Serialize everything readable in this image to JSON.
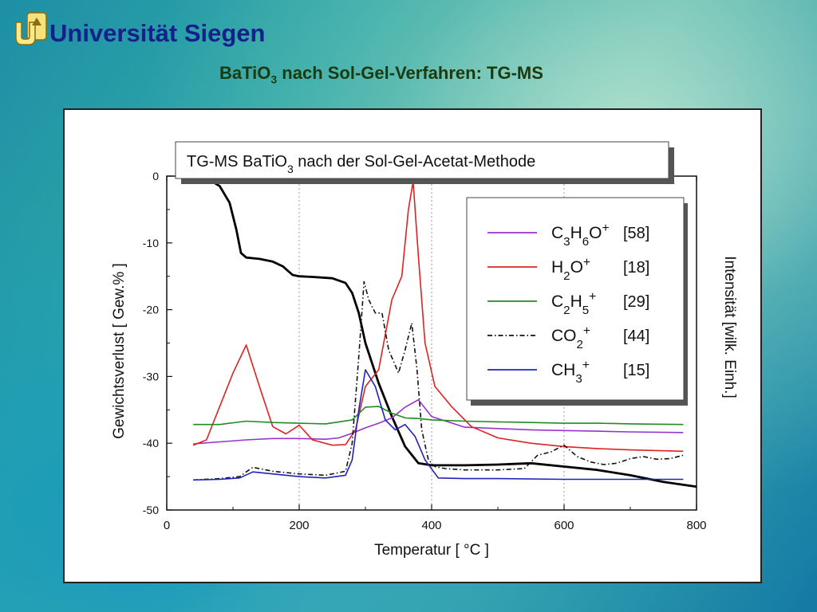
{
  "header": {
    "logo_icon": "universitaet-siegen-logo-icon",
    "university": "Universität Siegen",
    "subtitle_main": "BaTiO",
    "subtitle_sub": "3",
    "subtitle_rest": " nach Sol-Gel-Verfahren: TG-MS"
  },
  "chart_data": {
    "type": "line",
    "title": "TG-MS   BaTiO3 nach der Sol-Gel-Acetat-Methode",
    "title_parts": {
      "a": "TG-MS   BaTiO",
      "sub": "3",
      "b": " nach der Sol-Gel-Acetat-Methode"
    },
    "xlabel": "Temperatur  [ °C ]",
    "ylabel": "Gewichtsverlust  [ Gew.% ]",
    "y2label": "Intensität  [wilk. Einh.]",
    "xlim": [
      0,
      800
    ],
    "ylim": [
      -50,
      0
    ],
    "xticks": [
      "0",
      "200",
      "400",
      "600",
      "800"
    ],
    "yticks": [
      "0",
      "-10",
      "-20",
      "-30",
      "-40",
      "-50"
    ],
    "grid": "vertical dotted lines at 200, 400, 600",
    "legend_position": "top-right",
    "series": [
      {
        "name": "TG",
        "color": "#000000",
        "style": "solid-thick",
        "x": [
          35,
          60,
          80,
          95,
          105,
          112,
          120,
          140,
          160,
          175,
          190,
          200,
          220,
          250,
          270,
          280,
          290,
          300,
          320,
          340,
          360,
          380,
          400,
          450,
          500,
          550,
          600,
          650,
          700,
          750,
          800
        ],
        "y": [
          0,
          -0.3,
          -1.5,
          -4,
          -8,
          -11.5,
          -12.2,
          -12.4,
          -12.8,
          -13.5,
          -14.8,
          -15,
          -15.1,
          -15.3,
          -16,
          -17.5,
          -20.5,
          -25,
          -31,
          -36,
          -40.5,
          -43,
          -43.3,
          -43.3,
          -43.2,
          -43,
          -43.5,
          -44,
          -44.8,
          -45.8,
          -46.5
        ]
      },
      {
        "name": "C3H6O+",
        "mz": "[58]",
        "label_parts": [
          "C",
          "3",
          "H",
          "6",
          "O",
          "+"
        ],
        "color": "#9933cc",
        "style": "solid",
        "x": [
          40,
          80,
          120,
          160,
          200,
          240,
          260,
          280,
          300,
          320,
          340,
          360,
          380,
          400,
          450,
          500,
          550,
          600,
          650,
          700,
          780
        ],
        "y": [
          -40.1,
          -39.8,
          -39.5,
          -39.3,
          -39.3,
          -39.4,
          -39.2,
          -38.5,
          -37.7,
          -37,
          -36.2,
          -34.6,
          -33.5,
          -36,
          -37.6,
          -37.8,
          -38,
          -38.1,
          -38.2,
          -38.3,
          -38.4
        ]
      },
      {
        "name": "H2O+",
        "mz": "[18]",
        "label_parts": [
          "H",
          "2",
          "O",
          "+"
        ],
        "color": "#dd2222",
        "style": "solid",
        "x": [
          40,
          60,
          80,
          100,
          120,
          140,
          160,
          180,
          200,
          220,
          250,
          270,
          285,
          300,
          320,
          340,
          355,
          365,
          372,
          380,
          390,
          405,
          430,
          460,
          500,
          550,
          600,
          650,
          700,
          780
        ],
        "y": [
          -40.3,
          -39.5,
          -34.5,
          -29.5,
          -25.3,
          -31.5,
          -37.5,
          -38.6,
          -37.3,
          -39.5,
          -40.3,
          -40.2,
          -38,
          -31.5,
          -29,
          -18.5,
          -15,
          -5,
          -0.8,
          -12,
          -25,
          -31.5,
          -34.5,
          -37.5,
          -39.2,
          -40,
          -40.5,
          -40.8,
          -41,
          -41.2
        ]
      },
      {
        "name": "C2H5+",
        "mz": "[29]",
        "label_parts": [
          "C",
          "2",
          "H",
          "5",
          "+"
        ],
        "color": "#228b22",
        "style": "solid",
        "x": [
          40,
          80,
          120,
          160,
          200,
          240,
          280,
          300,
          320,
          340,
          360,
          380,
          400,
          450,
          500,
          550,
          600,
          650,
          700,
          780
        ],
        "y": [
          -37.2,
          -37.2,
          -36.7,
          -36.9,
          -37,
          -37.1,
          -36.5,
          -34.6,
          -34.5,
          -35.5,
          -36.2,
          -36.3,
          -36.5,
          -36.7,
          -36.8,
          -36.9,
          -37,
          -37,
          -37.1,
          -37.2
        ]
      },
      {
        "name": "CO2+",
        "mz": "[44]",
        "label_parts": [
          "CO",
          "2",
          "+"
        ],
        "color": "#111111",
        "style": "dashdot",
        "x": [
          40,
          80,
          110,
          130,
          160,
          200,
          240,
          270,
          280,
          290,
          298,
          305,
          315,
          325,
          335,
          350,
          360,
          370,
          378,
          385,
          395,
          405,
          420,
          450,
          500,
          540,
          560,
          580,
          600,
          620,
          640,
          660,
          680,
          700,
          720,
          740,
          760,
          780
        ],
        "y": [
          -45.5,
          -45.3,
          -45,
          -43.6,
          -44.2,
          -44.6,
          -44.8,
          -44.2,
          -40,
          -27,
          -15.8,
          -18.5,
          -20.5,
          -20.5,
          -26,
          -29.5,
          -26,
          -22,
          -29,
          -38,
          -42.5,
          -43.5,
          -43.8,
          -44,
          -44,
          -43.8,
          -41.8,
          -41.3,
          -40.3,
          -42,
          -42.8,
          -43.2,
          -43,
          -42.3,
          -42,
          -42.4,
          -42.3,
          -41.8
        ]
      },
      {
        "name": "CH3+",
        "mz": "[15]",
        "label_parts": [
          "CH",
          "3",
          "+"
        ],
        "color": "#2222bb",
        "style": "solid",
        "x": [
          40,
          80,
          110,
          130,
          170,
          200,
          240,
          270,
          280,
          290,
          300,
          315,
          330,
          345,
          360,
          375,
          390,
          410,
          450,
          500,
          600,
          700,
          780
        ],
        "y": [
          -45.5,
          -45.4,
          -45.2,
          -44.3,
          -44.7,
          -45,
          -45.2,
          -44.8,
          -42.5,
          -35,
          -29,
          -31.5,
          -36.5,
          -38,
          -37.2,
          -39,
          -42.5,
          -45.2,
          -45.3,
          -45.3,
          -45.4,
          -45.4,
          -45.4
        ]
      }
    ]
  }
}
